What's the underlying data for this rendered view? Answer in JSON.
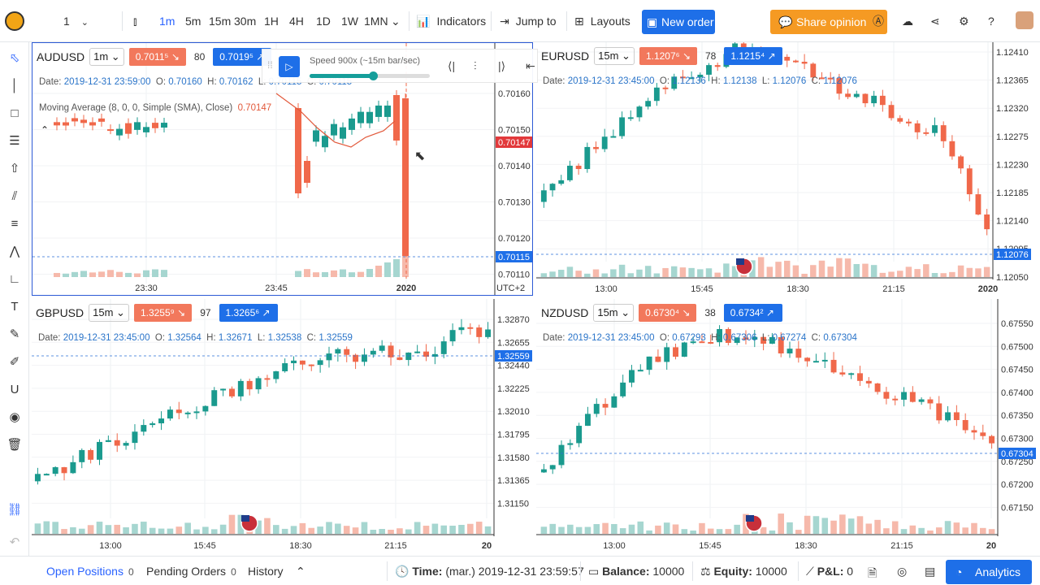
{
  "topbar": {
    "layout_count": "1",
    "intervals": [
      "1m",
      "5m",
      "15m",
      "30m",
      "1H",
      "4H",
      "1D",
      "1W",
      "1MN"
    ],
    "active_interval": "1m",
    "indicators": "Indicators",
    "jump_to": "Jump to",
    "layouts": "Layouts",
    "new_order": "New order",
    "share_opinion": "Share opinion"
  },
  "replay": {
    "speed_label": "Speed 900x (~15m bar/sec)",
    "progress": 0.53
  },
  "charts": [
    {
      "symbol": "AUDUSD",
      "timeframe": "1m",
      "sell": "0.7011⁵",
      "spread": "80",
      "buy": "0.7019⁵",
      "date": "2019-12-31 23:59:00",
      "o": "0.70160",
      "h": "0.70162",
      "l": "0.70115",
      "c": "0.70115",
      "ma_label": "Moving Average (8, 0, 0, Simple (SMA), Close)",
      "ma_value": "0.70147",
      "price_ticks": [
        "0.70160",
        "0.70150",
        "0.70140",
        "0.70130",
        "0.70120",
        "0.70110"
      ],
      "time_ticks": [
        "23:30",
        "23:45",
        "2020"
      ],
      "tz": "UTC+2",
      "current_price": "0.70115",
      "ma_tag": "0.70147"
    },
    {
      "symbol": "EURUSD",
      "timeframe": "15m",
      "sell": "1.1207⁶",
      "spread": "78",
      "buy": "1.1215⁴",
      "date": "2019-12-31 23:45:00",
      "o": "1.12136",
      "h": "1.12138",
      "l": "1.12076",
      "c": "1.12076",
      "price_ticks": [
        "1.12410",
        "1.12365",
        "1.12320",
        "1.12275",
        "1.12230",
        "1.12185",
        "1.12140",
        "1.12095",
        "1.12050"
      ],
      "time_ticks": [
        "13:00",
        "15:45",
        "18:30",
        "21:15",
        "2020"
      ],
      "current_price": "1.12076"
    },
    {
      "symbol": "GBPUSD",
      "timeframe": "15m",
      "sell": "1.3255⁹",
      "spread": "97",
      "buy": "1.3265⁶",
      "date": "2019-12-31 23:45:00",
      "o": "1.32564",
      "h": "1.32671",
      "l": "1.32538",
      "c": "1.32559",
      "price_ticks": [
        "1.32870",
        "1.32655",
        "1.32440",
        "1.32225",
        "1.32010",
        "1.31795",
        "1.31580",
        "1.31365",
        "1.31150"
      ],
      "time_ticks": [
        "13:00",
        "15:45",
        "18:30",
        "21:15",
        "20"
      ],
      "current_price": "1.32559"
    },
    {
      "symbol": "NZDUSD",
      "timeframe": "15m",
      "sell": "0.6730⁴",
      "spread": "38",
      "buy": "0.6734²",
      "date": "2019-12-31 23:45:00",
      "o": "0.67293",
      "h": "0.67306",
      "l": "0.67274",
      "c": "0.67304",
      "price_ticks": [
        "0.67550",
        "0.67500",
        "0.67450",
        "0.67400",
        "0.67350",
        "0.67300",
        "0.67250",
        "0.67200",
        "0.67150"
      ],
      "time_ticks": [
        "13:00",
        "15:45",
        "18:30",
        "21:15",
        "20"
      ],
      "current_price": "0.67304"
    }
  ],
  "bottombar": {
    "open_positions": "Open Positions",
    "open_positions_count": "0",
    "pending_orders": "Pending Orders",
    "pending_orders_count": "0",
    "history": "History",
    "time_label": "Time:",
    "time_value": "(mar.) 2019-12-31 23:59:57",
    "balance_label": "Balance:",
    "balance_value": "10000",
    "equity_label": "Equity:",
    "equity_value": "10000",
    "pnl_label": "P&L:",
    "pnl_value": "0",
    "analytics": "Analytics"
  },
  "colors": {
    "up": "#1a9a8e",
    "down": "#f0684a",
    "accent": "#1e6fe8",
    "share": "#f59a23"
  }
}
